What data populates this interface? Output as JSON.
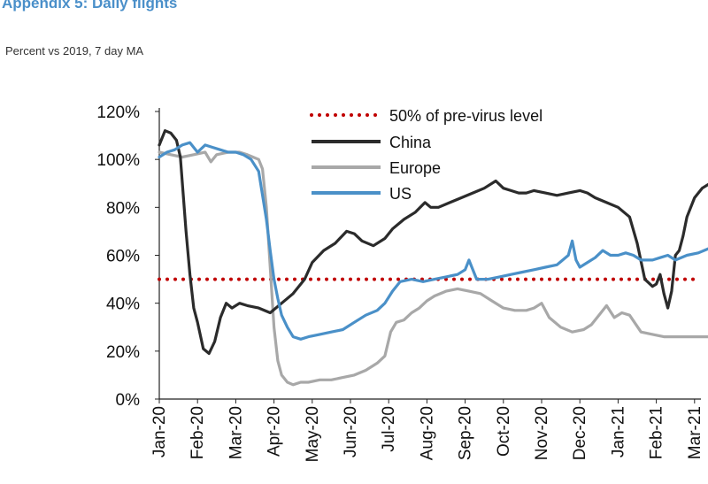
{
  "header": {
    "title": "Appendix 5: Daily flights",
    "subtitle": "Percent vs 2019, 7 day MA"
  },
  "chart_data": {
    "type": "line",
    "title": "Appendix 5: Daily flights",
    "subtitle": "Percent vs 2019, 7 day MA",
    "xlabel": "",
    "ylabel": "",
    "ylim": [
      0,
      120
    ],
    "xlim": [
      0,
      14.7
    ],
    "y_ticks": [
      "0%",
      "20%",
      "40%",
      "60%",
      "80%",
      "100%",
      "120%"
    ],
    "x_ticks": [
      "Jan-20",
      "Feb-20",
      "Mar-20",
      "Apr-20",
      "May-20",
      "Jun-20",
      "Jul-20",
      "Aug-20",
      "Sep-20",
      "Oct-20",
      "Nov-20",
      "Dec-20",
      "Jan-21",
      "Feb-21",
      "Mar-21"
    ],
    "x_unit": "months since Jan-20",
    "grid": false,
    "legend_position": "top-center",
    "reference_line": {
      "name": "50% of pre-virus level",
      "value": 50,
      "color": "#c00000",
      "style": "dotted"
    },
    "series": [
      {
        "name": "China",
        "color": "#2b2b2b",
        "x": [
          0,
          0.15,
          0.3,
          0.45,
          0.55,
          0.7,
          0.8,
          0.9,
          1.0,
          1.15,
          1.3,
          1.45,
          1.6,
          1.75,
          1.9,
          2.1,
          2.3,
          2.6,
          2.9,
          3.2,
          3.5,
          3.8,
          4.0,
          4.3,
          4.6,
          4.9,
          5.1,
          5.3,
          5.6,
          5.9,
          6.1,
          6.4,
          6.7,
          6.95,
          7.1,
          7.3,
          7.6,
          7.9,
          8.2,
          8.5,
          8.8,
          9.0,
          9.2,
          9.4,
          9.6,
          9.8,
          10.1,
          10.4,
          10.7,
          11.0,
          11.2,
          11.4,
          11.7,
          12.0,
          12.3,
          12.5,
          12.7,
          12.9,
          13.0,
          13.1,
          13.2,
          13.3,
          13.4,
          13.5,
          13.6,
          13.7,
          13.8,
          14.0,
          14.2,
          14.4,
          14.6,
          14.7
        ],
        "values": [
          106,
          112,
          111,
          108,
          101,
          70,
          52,
          38,
          32,
          21,
          19,
          24,
          34,
          40,
          38,
          40,
          39,
          38,
          36,
          40,
          44,
          50,
          57,
          62,
          65,
          70,
          69,
          66,
          64,
          67,
          71,
          75,
          78,
          82,
          80,
          80,
          82,
          84,
          86,
          88,
          91,
          88,
          87,
          86,
          86,
          87,
          86,
          85,
          86,
          87,
          86,
          84,
          82,
          80,
          76,
          65,
          50,
          47,
          48,
          52,
          44,
          38,
          45,
          60,
          62,
          68,
          76,
          84,
          88,
          90,
          92,
          92
        ]
      },
      {
        "name": "Europe",
        "color": "#a8a8a8",
        "x": [
          0,
          0.3,
          0.6,
          0.9,
          1.2,
          1.35,
          1.5,
          1.8,
          2.1,
          2.3,
          2.45,
          2.6,
          2.7,
          2.8,
          2.9,
          3.0,
          3.1,
          3.2,
          3.35,
          3.5,
          3.7,
          3.9,
          4.2,
          4.5,
          4.8,
          5.1,
          5.4,
          5.7,
          5.9,
          6.05,
          6.2,
          6.4,
          6.6,
          6.8,
          7.0,
          7.2,
          7.5,
          7.8,
          8.1,
          8.4,
          8.7,
          9.0,
          9.3,
          9.6,
          9.8,
          10.0,
          10.2,
          10.5,
          10.8,
          11.1,
          11.3,
          11.5,
          11.7,
          11.9,
          12.1,
          12.3,
          12.6,
          12.9,
          13.2,
          13.5,
          13.8,
          14.1,
          14.4,
          14.7
        ],
        "values": [
          103,
          102,
          101,
          102,
          103,
          99,
          102,
          103,
          103,
          102,
          101,
          100,
          96,
          80,
          55,
          30,
          16,
          10,
          7,
          6,
          7,
          7,
          8,
          8,
          9,
          10,
          12,
          15,
          18,
          28,
          32,
          33,
          36,
          38,
          41,
          43,
          45,
          46,
          45,
          44,
          41,
          38,
          37,
          37,
          38,
          40,
          34,
          30,
          28,
          29,
          31,
          35,
          39,
          34,
          36,
          35,
          28,
          27,
          26,
          26,
          26,
          26,
          26,
          26
        ]
      },
      {
        "name": "US",
        "color": "#4a90c8",
        "x": [
          0,
          0.2,
          0.4,
          0.6,
          0.8,
          1.0,
          1.2,
          1.4,
          1.6,
          1.8,
          2.0,
          2.2,
          2.4,
          2.6,
          2.8,
          2.9,
          3.0,
          3.1,
          3.2,
          3.35,
          3.5,
          3.7,
          3.9,
          4.2,
          4.5,
          4.8,
          5.1,
          5.4,
          5.7,
          5.9,
          6.1,
          6.3,
          6.6,
          6.9,
          7.2,
          7.5,
          7.8,
          8.0,
          8.1,
          8.3,
          8.6,
          8.9,
          9.2,
          9.5,
          9.8,
          10.1,
          10.4,
          10.55,
          10.7,
          10.8,
          10.9,
          11.0,
          11.2,
          11.4,
          11.6,
          11.8,
          12.0,
          12.2,
          12.4,
          12.6,
          12.9,
          13.1,
          13.3,
          13.5,
          13.8,
          14.1,
          14.4,
          14.7
        ],
        "values": [
          101,
          103,
          104,
          106,
          107,
          103,
          106,
          105,
          104,
          103,
          103,
          102,
          100,
          95,
          75,
          62,
          50,
          42,
          35,
          30,
          26,
          25,
          26,
          27,
          28,
          29,
          32,
          35,
          37,
          40,
          45,
          49,
          50,
          49,
          50,
          51,
          52,
          54,
          58,
          50,
          50,
          51,
          52,
          53,
          54,
          55,
          56,
          58,
          60,
          66,
          58,
          55,
          57,
          59,
          62,
          60,
          60,
          61,
          60,
          58,
          58,
          59,
          60,
          58,
          60,
          61,
          63,
          64
        ]
      }
    ]
  }
}
